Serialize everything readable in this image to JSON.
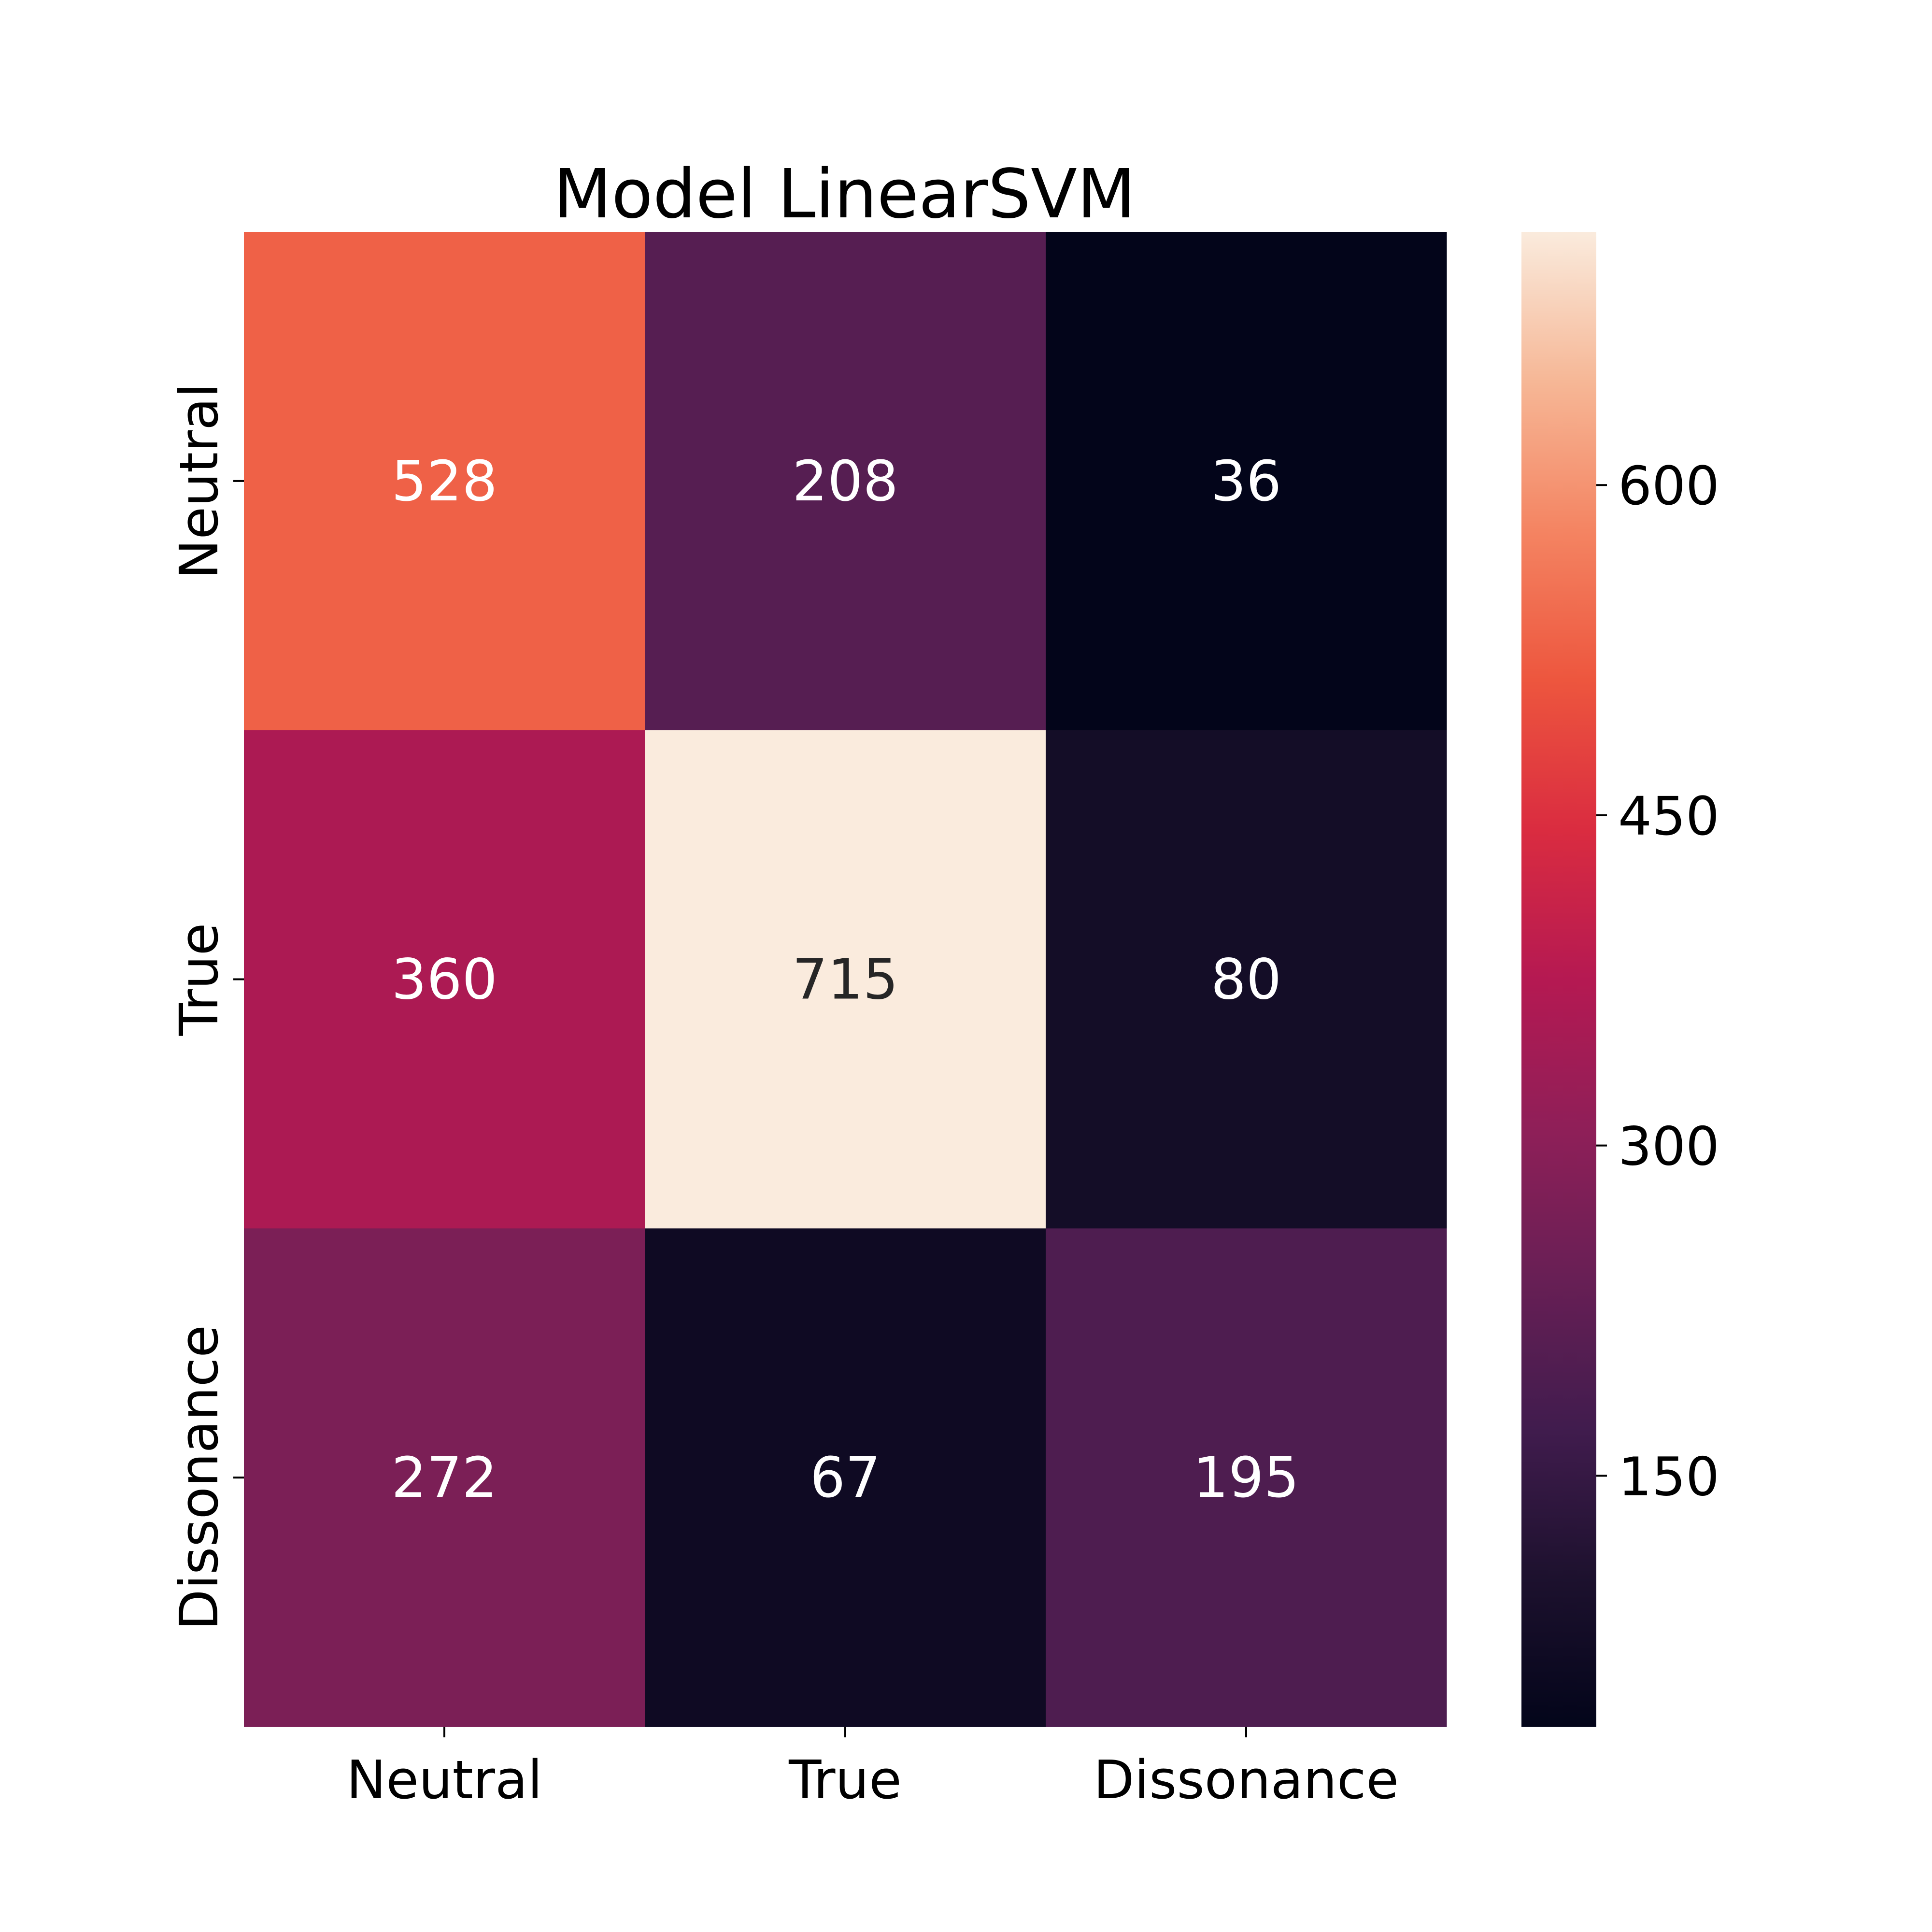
{
  "chart_data": {
    "type": "heatmap",
    "title": "Model LinearSVM",
    "xlabel": "",
    "ylabel": "",
    "x_categories": [
      "Neutral",
      "True",
      "Dissonance"
    ],
    "y_categories": [
      "Neutral",
      "True",
      "Dissonance"
    ],
    "values": [
      [
        528,
        208,
        36
      ],
      [
        360,
        715,
        80
      ],
      [
        272,
        67,
        195
      ]
    ],
    "colorbar": {
      "ticks": [
        150,
        300,
        450,
        600
      ],
      "range": [
        36,
        715
      ],
      "colormap": "rocket"
    },
    "annot_light_color": "#ffffff",
    "annot_dark_color": "#262626"
  }
}
